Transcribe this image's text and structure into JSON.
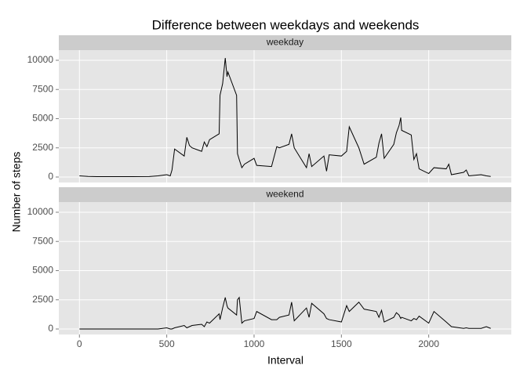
{
  "chart_data": {
    "type": "line",
    "title": "Difference between weekdays and weekends",
    "xlabel": "Interval",
    "ylabel": "Number of steps",
    "facets": true,
    "grid": true,
    "x": [
      0,
      50,
      100,
      200,
      300,
      400,
      450,
      500,
      520,
      530,
      545,
      600,
      615,
      630,
      645,
      700,
      715,
      730,
      745,
      800,
      805,
      820,
      835,
      845,
      850,
      900,
      905,
      915,
      930,
      945,
      1000,
      1015,
      1100,
      1130,
      1145,
      1200,
      1215,
      1230,
      1300,
      1315,
      1330,
      1400,
      1415,
      1430,
      1500,
      1530,
      1545,
      1600,
      1630,
      1700,
      1715,
      1730,
      1745,
      1800,
      1815,
      1830,
      1840,
      1845,
      1900,
      1915,
      1930,
      1945,
      2000,
      2030,
      2100,
      2115,
      2130,
      2200,
      2215,
      2230,
      2300,
      2330,
      2355
    ],
    "series": [
      {
        "name": "weekday",
        "color": "#000000",
        "values": [
          100,
          50,
          30,
          30,
          30,
          40,
          100,
          200,
          100,
          600,
          2400,
          1800,
          3400,
          2700,
          2500,
          2200,
          3000,
          2600,
          3200,
          3700,
          7000,
          8000,
          10200,
          8600,
          9000,
          7000,
          2000,
          1500,
          800,
          1100,
          1600,
          1000,
          900,
          2600,
          2500,
          2800,
          3700,
          2500,
          800,
          2000,
          900,
          1800,
          500,
          1900,
          1800,
          2200,
          4300,
          2500,
          1100,
          1700,
          2900,
          3700,
          1600,
          2800,
          3800,
          4400,
          5100,
          4000,
          3600,
          1500,
          2000,
          700,
          300,
          800,
          700,
          1100,
          200,
          400,
          600,
          100,
          200,
          100,
          50
        ]
      },
      {
        "name": "weekend",
        "color": "#000000",
        "values": [
          0,
          0,
          0,
          0,
          0,
          0,
          0,
          100,
          0,
          0,
          100,
          300,
          100,
          200,
          300,
          400,
          200,
          600,
          500,
          1300,
          800,
          1800,
          2700,
          2000,
          1800,
          1200,
          2500,
          2700,
          500,
          700,
          900,
          1500,
          800,
          800,
          1000,
          1200,
          2300,
          700,
          1800,
          1000,
          2200,
          1300,
          900,
          800,
          600,
          2000,
          1500,
          2300,
          1700,
          1500,
          1000,
          1600,
          600,
          1000,
          1400,
          1200,
          900,
          1000,
          700,
          900,
          800,
          1100,
          500,
          1500,
          600,
          400,
          200,
          50,
          100,
          50,
          50,
          200,
          50
        ]
      }
    ],
    "xlim": [
      -118,
      2473
    ],
    "xticks": [
      0,
      500,
      1000,
      1500,
      2000
    ],
    "ylim": [
      -470,
      10870
    ],
    "yticks": [
      0,
      2500,
      5000,
      7500,
      10000
    ]
  }
}
